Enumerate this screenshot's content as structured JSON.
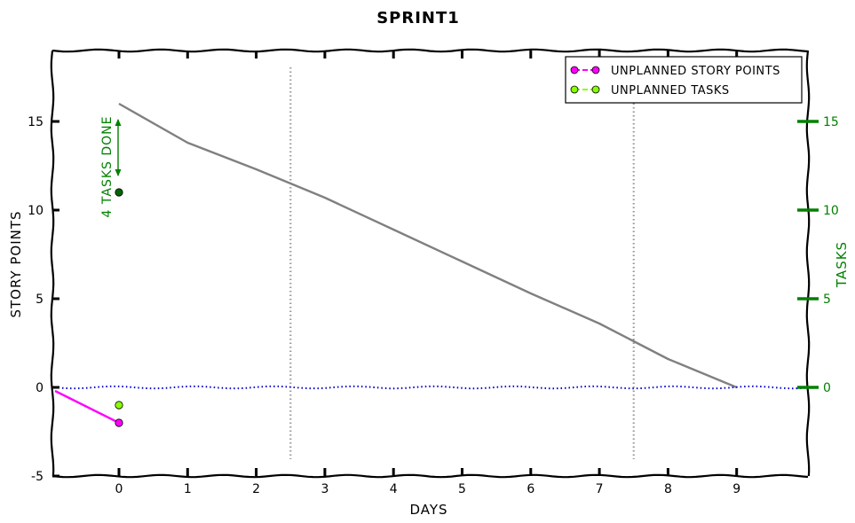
{
  "chart_data": {
    "type": "line",
    "title": "SPRINT1",
    "xlabel": "DAYS",
    "ylabel": "STORY POINTS",
    "ylabel_right": "TASKS",
    "xlim": [
      -1,
      10
    ],
    "ylim": [
      -5,
      19
    ],
    "ylim_right": [
      -4,
      15
    ],
    "x_ticks": [
      0,
      1,
      2,
      3,
      4,
      5,
      6,
      7,
      8,
      9
    ],
    "y_ticks": [
      -5,
      0,
      5,
      10,
      15
    ],
    "y_ticks_right": [
      0,
      5,
      10,
      15
    ],
    "legend_position": "top-right",
    "grid": false,
    "series": [
      {
        "name": "",
        "axis": "left",
        "style": "solid",
        "color": "#808080",
        "x": [
          0,
          1,
          2,
          2.5,
          3,
          4,
          5,
          6,
          7,
          7.5,
          8,
          9
        ],
        "y": [
          16,
          13.8,
          12.3,
          11.5,
          10.7,
          8.9,
          7.1,
          5.3,
          3.6,
          2.6,
          1.6,
          0
        ]
      },
      {
        "name": "",
        "axis": "left",
        "style": "dotted",
        "color": "#0000cc",
        "x": [
          -1,
          10
        ],
        "y": [
          0,
          0
        ]
      },
      {
        "name": "UNPLANNED STORY POINTS",
        "axis": "left",
        "style": "dashed-marker",
        "color": "#ff00ff",
        "x": [
          -1,
          0
        ],
        "y": [
          -0.2,
          -2
        ]
      },
      {
        "name": "UNPLANNED TASKS",
        "axis": "right",
        "style": "dashed-marker",
        "color": "#88ff00",
        "x": [
          0
        ],
        "y": [
          -1
        ]
      }
    ],
    "tasks_done_marker": {
      "x": 0,
      "y": 11,
      "color": "#006400"
    },
    "vertical_lines": [
      2.5,
      7.5
    ],
    "annotations": [
      {
        "text": "4 TASKS DONE",
        "x": -0.2,
        "y": 13,
        "color": "#008000",
        "rotation": -90
      }
    ]
  }
}
